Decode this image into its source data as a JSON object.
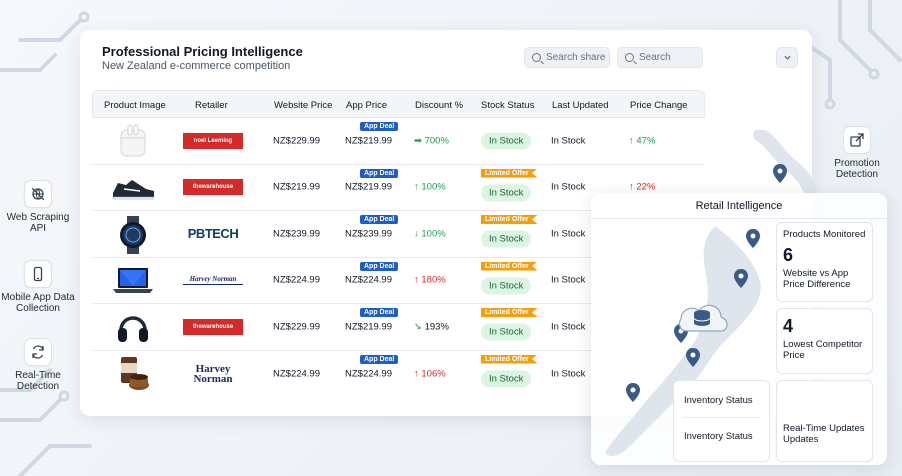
{
  "header": {
    "title": "Professional Pricing Intelligence",
    "subtitle": "New Zealand e-commerce competition",
    "search_share_placeholder": "Search share",
    "search_placeholder": "Search"
  },
  "features_left": [
    {
      "label": "Web Scraping API",
      "icon": "globe-scan-icon"
    },
    {
      "label": "Mobile App Data Collection",
      "icon": "phone-icon"
    },
    {
      "label": "Real-Time Detection",
      "icon": "refresh-icon"
    }
  ],
  "promotion": {
    "label": "Promotion Detection",
    "icon": "external-link-icon"
  },
  "table": {
    "columns": [
      "Product Image",
      "Retailer",
      "Website Price",
      "App Price",
      "Discount %",
      "Stock Status",
      "Last Updated",
      "Price Change"
    ],
    "app_deal_label": "App Deal",
    "limited_offer_label": "Limited Offer",
    "rows": [
      {
        "product": "earbuds",
        "retailer": "noel Leeming",
        "website_price": "NZ$229.99",
        "app_price": "NZ$219.99",
        "discount_arrow": "➡",
        "discount": "700%",
        "stock": "In Stock",
        "updated": "In Stock",
        "change_arrow": "↑",
        "change": "47%",
        "limited": false
      },
      {
        "product": "sneaker",
        "retailer": "thewarehouse",
        "website_price": "NZ$219.99",
        "app_price": "NZ$219.99",
        "discount_arrow": "↑",
        "discount": "100%",
        "stock": "In Stock",
        "updated": "In Stock",
        "change_arrow": "↑",
        "change": "22%",
        "limited": true
      },
      {
        "product": "smartwatch",
        "retailer": "PBTECH",
        "website_price": "NZ$239.99",
        "app_price": "NZ$239.99",
        "discount_arrow": "↓",
        "discount": "100%",
        "stock": "In Stock",
        "updated": "In Stock",
        "change_arrow": "",
        "change": "",
        "limited": true
      },
      {
        "product": "laptop",
        "retailer": "Harvey Norman",
        "website_price": "NZ$224.99",
        "app_price": "NZ$224.99",
        "discount_arrow": "↑",
        "discount": "180%",
        "stock": "In Stock",
        "updated": "In Stock",
        "change_arrow": "",
        "change": "",
        "limited": true
      },
      {
        "product": "headphones",
        "retailer": "thewarehouse",
        "website_price": "NZ$229.99",
        "app_price": "NZ$219.99",
        "discount_arrow": "➘",
        "discount": "193%",
        "stock": "In Stock",
        "updated": "In Stock",
        "change_arrow": "",
        "change": "",
        "limited": true
      },
      {
        "product": "coffee",
        "retailer": "Harvey Norman",
        "website_price": "NZ$224.99",
        "app_price": "NZ$224.99",
        "discount_arrow": "↑",
        "discount": "106%",
        "stock": "In Stock",
        "updated": "In Stock",
        "change_arrow": "",
        "change": "",
        "limited": true
      }
    ]
  },
  "retail_intel": {
    "title": "Retail Intelligence",
    "products_monitored_label": "Products Monitored",
    "products_monitored_value": "6",
    "diff_label": "Website vs App Price Difference",
    "lowest_value": "4",
    "lowest_label": "Lowest Competitor Price",
    "inventory_1": "Inventory Status",
    "inventory_2": "Inventory Status",
    "realtime_label": "Real-Time Updates Updates"
  },
  "colors": {
    "accent": "#1e5cc6",
    "limited": "#f59e0b",
    "stock_bg": "#dcf5e3",
    "up_green": "#16a34a",
    "up_red": "#dc2626"
  }
}
